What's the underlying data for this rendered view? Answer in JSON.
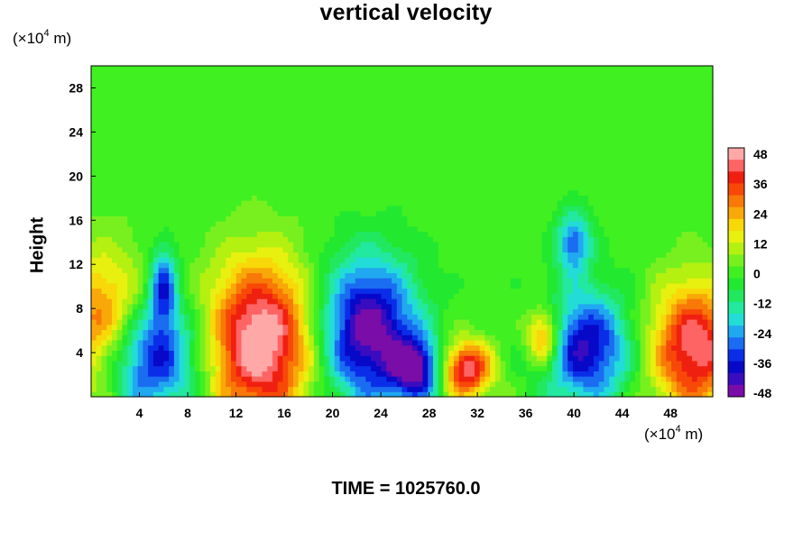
{
  "chart_data": {
    "type": "heatmap",
    "title": "vertical velocity",
    "ylabel": "Height",
    "y_unit_prefix": "(×10",
    "y_unit_exp": "4",
    "y_unit_suffix": " m)",
    "x_unit_prefix": "(×10",
    "x_unit_exp": "4",
    "x_unit_suffix": " m)",
    "xlim": [
      0,
      51.5
    ],
    "ylim": [
      0,
      30
    ],
    "x_ticks": [
      "4",
      "8",
      "12",
      "16",
      "20",
      "24",
      "28",
      "32",
      "36",
      "40",
      "44",
      "48"
    ],
    "y_ticks": [
      "4",
      "8",
      "12",
      "16",
      "20",
      "24",
      "28"
    ],
    "colorbar": {
      "range": [
        -48,
        48
      ],
      "ticks": [
        "48",
        "36",
        "24",
        "12",
        "0",
        "-12",
        "-24",
        "-36",
        "-48"
      ],
      "colors": [
        "#7a0ca8",
        "#3a0cc0",
        "#0808c8",
        "#0a2ee8",
        "#1a6cf0",
        "#20a8f0",
        "#22dcd8",
        "#22e8a0",
        "#22e860",
        "#22e830",
        "#40f020",
        "#78f020",
        "#b4f010",
        "#e8f010",
        "#f8d808",
        "#f8a808",
        "#f87808",
        "#f84808",
        "#f02010",
        "#ff6464",
        "#ffa8a8"
      ]
    },
    "field_features": [
      {
        "kind": "updraft",
        "center": [
          1,
          6
        ],
        "spread": [
          2.5,
          4.5
        ],
        "peak": 36
      },
      {
        "kind": "downdraft",
        "center": [
          4.5,
          3.5
        ],
        "spread": [
          3.0,
          3.5
        ],
        "peak": -42
      },
      {
        "kind": "downdraft",
        "center": [
          6,
          10
        ],
        "spread": [
          0.8,
          2.5
        ],
        "peak": -32
      },
      {
        "kind": "updraft",
        "center": [
          14,
          5
        ],
        "spread": [
          3.0,
          5.0
        ],
        "peak": 52
      },
      {
        "kind": "downdraft",
        "center": [
          23,
          6
        ],
        "spread": [
          2.8,
          4.5
        ],
        "peak": -48
      },
      {
        "kind": "downdraft",
        "center": [
          27,
          2.5
        ],
        "spread": [
          1.5,
          2.0
        ],
        "peak": -40
      },
      {
        "kind": "updraft",
        "center": [
          31,
          2.5
        ],
        "spread": [
          1.5,
          1.8
        ],
        "peak": 44
      },
      {
        "kind": "updraft",
        "center": [
          37.5,
          5.5
        ],
        "spread": [
          1.0,
          1.8
        ],
        "peak": 34
      },
      {
        "kind": "downdraft",
        "center": [
          41,
          4.5
        ],
        "spread": [
          2.5,
          3.5
        ],
        "peak": -40
      },
      {
        "kind": "downdraft",
        "center": [
          40,
          14
        ],
        "spread": [
          1.0,
          2.0
        ],
        "peak": -28
      },
      {
        "kind": "updraft",
        "center": [
          50,
          4.5
        ],
        "spread": [
          2.5,
          4.0
        ],
        "peak": 44
      }
    ]
  },
  "time_label": "TIME = 1025760.0"
}
